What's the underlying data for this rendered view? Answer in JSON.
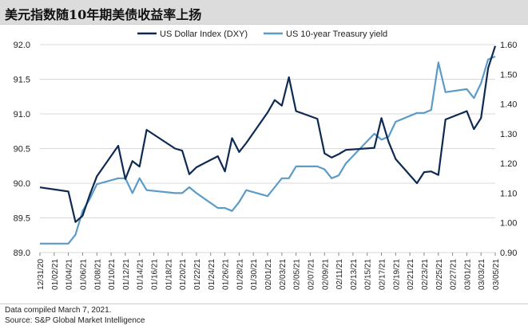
{
  "title": "美元指数随10年期美债收益率上扬",
  "notes": {
    "compiled": "Data compiled March 7, 2021.",
    "source": "Source: S&P Global Market Intelligence"
  },
  "chart_data": {
    "type": "line",
    "title": "美元指数随10年期美债收益率上扬",
    "x_tick_labels": [
      "12/31/20",
      "01/02/21",
      "01/04/21",
      "01/06/21",
      "01/08/21",
      "01/10/21",
      "01/12/21",
      "01/14/21",
      "01/16/21",
      "01/18/21",
      "01/20/21",
      "01/22/21",
      "01/24/21",
      "01/26/21",
      "01/28/21",
      "01/30/21",
      "02/01/21",
      "02/03/21",
      "02/05/21",
      "02/07/21",
      "02/09/21",
      "02/11/21",
      "02/13/21",
      "02/15/21",
      "02/17/21",
      "02/19/21",
      "02/21/21",
      "02/23/21",
      "02/25/21",
      "02/27/21",
      "03/01/21",
      "03/03/21",
      "03/05/21"
    ],
    "x_range": [
      "12/31/20",
      "03/05/21"
    ],
    "left_axis": {
      "series": "US Dollar Index (DXY)",
      "ylim": [
        89.0,
        92.0
      ],
      "ticks": [
        "89.0",
        "89.5",
        "90.0",
        "90.5",
        "91.0",
        "91.5",
        "92.0"
      ]
    },
    "right_axis": {
      "series": "US 10-year Treasury yield",
      "ylim": [
        0.9,
        1.6
      ],
      "ticks": [
        "0.90",
        "1.00",
        "1.10",
        "1.20",
        "1.30",
        "1.40",
        "1.50",
        "1.60"
      ]
    },
    "legend_position": "top-center",
    "grid": "horizontal",
    "series": [
      {
        "name": "US Dollar Index (DXY)",
        "axis": "left",
        "color": "#0f2a52",
        "points": [
          [
            "12/31/20",
            89.94
          ],
          [
            "01/04/21",
            89.88
          ],
          [
            "01/05/21",
            89.44
          ],
          [
            "01/06/21",
            89.53
          ],
          [
            "01/07/21",
            89.83
          ],
          [
            "01/08/21",
            90.1
          ],
          [
            "01/11/21",
            90.54
          ],
          [
            "01/12/21",
            90.06
          ],
          [
            "01/13/21",
            90.32
          ],
          [
            "01/14/21",
            90.24
          ],
          [
            "01/15/21",
            90.77
          ],
          [
            "01/19/21",
            90.5
          ],
          [
            "01/20/21",
            90.47
          ],
          [
            "01/21/21",
            90.13
          ],
          [
            "01/22/21",
            90.23
          ],
          [
            "01/25/21",
            90.39
          ],
          [
            "01/26/21",
            90.17
          ],
          [
            "01/27/21",
            90.65
          ],
          [
            "01/28/21",
            90.45
          ],
          [
            "01/29/21",
            90.58
          ],
          [
            "02/01/21",
            91.02
          ],
          [
            "02/02/21",
            91.2
          ],
          [
            "02/03/21",
            91.12
          ],
          [
            "02/04/21",
            91.53
          ],
          [
            "02/05/21",
            91.04
          ],
          [
            "02/08/21",
            90.93
          ],
          [
            "02/09/21",
            90.43
          ],
          [
            "02/10/21",
            90.37
          ],
          [
            "02/11/21",
            90.42
          ],
          [
            "02/12/21",
            90.48
          ],
          [
            "02/16/21",
            90.51
          ],
          [
            "02/17/21",
            90.94
          ],
          [
            "02/18/21",
            90.6
          ],
          [
            "02/19/21",
            90.35
          ],
          [
            "02/22/21",
            90.0
          ],
          [
            "02/23/21",
            90.16
          ],
          [
            "02/24/21",
            90.17
          ],
          [
            "02/25/21",
            90.12
          ],
          [
            "02/26/21",
            90.92
          ],
          [
            "03/01/21",
            91.04
          ],
          [
            "03/02/21",
            90.78
          ],
          [
            "03/03/21",
            90.94
          ],
          [
            "03/04/21",
            91.66
          ],
          [
            "03/05/21",
            91.98
          ]
        ]
      },
      {
        "name": "US 10-year Treasury yield",
        "axis": "right",
        "color": "#5b9bc8",
        "points": [
          [
            "12/31/20",
            0.93
          ],
          [
            "01/04/21",
            0.93
          ],
          [
            "01/05/21",
            0.96
          ],
          [
            "01/06/21",
            1.04
          ],
          [
            "01/07/21",
            1.08
          ],
          [
            "01/08/21",
            1.13
          ],
          [
            "01/11/21",
            1.15
          ],
          [
            "01/12/21",
            1.15
          ],
          [
            "01/13/21",
            1.1
          ],
          [
            "01/14/21",
            1.15
          ],
          [
            "01/15/21",
            1.11
          ],
          [
            "01/19/21",
            1.1
          ],
          [
            "01/20/21",
            1.1
          ],
          [
            "01/21/21",
            1.12
          ],
          [
            "01/22/21",
            1.1
          ],
          [
            "01/25/21",
            1.05
          ],
          [
            "01/26/21",
            1.05
          ],
          [
            "01/27/21",
            1.04
          ],
          [
            "01/28/21",
            1.07
          ],
          [
            "01/29/21",
            1.11
          ],
          [
            "02/01/21",
            1.09
          ],
          [
            "02/02/21",
            1.12
          ],
          [
            "02/03/21",
            1.15
          ],
          [
            "02/04/21",
            1.15
          ],
          [
            "02/05/21",
            1.19
          ],
          [
            "02/08/21",
            1.19
          ],
          [
            "02/09/21",
            1.18
          ],
          [
            "02/10/21",
            1.15
          ],
          [
            "02/11/21",
            1.16
          ],
          [
            "02/12/21",
            1.2
          ],
          [
            "02/16/21",
            1.3
          ],
          [
            "02/17/21",
            1.28
          ],
          [
            "02/18/21",
            1.29
          ],
          [
            "02/19/21",
            1.34
          ],
          [
            "02/22/21",
            1.37
          ],
          [
            "02/23/21",
            1.37
          ],
          [
            "02/24/21",
            1.38
          ],
          [
            "02/25/21",
            1.54
          ],
          [
            "02/26/21",
            1.44
          ],
          [
            "03/01/21",
            1.45
          ],
          [
            "03/02/21",
            1.42
          ],
          [
            "03/03/21",
            1.47
          ],
          [
            "03/04/21",
            1.55
          ],
          [
            "03/05/21",
            1.56
          ]
        ]
      }
    ]
  }
}
